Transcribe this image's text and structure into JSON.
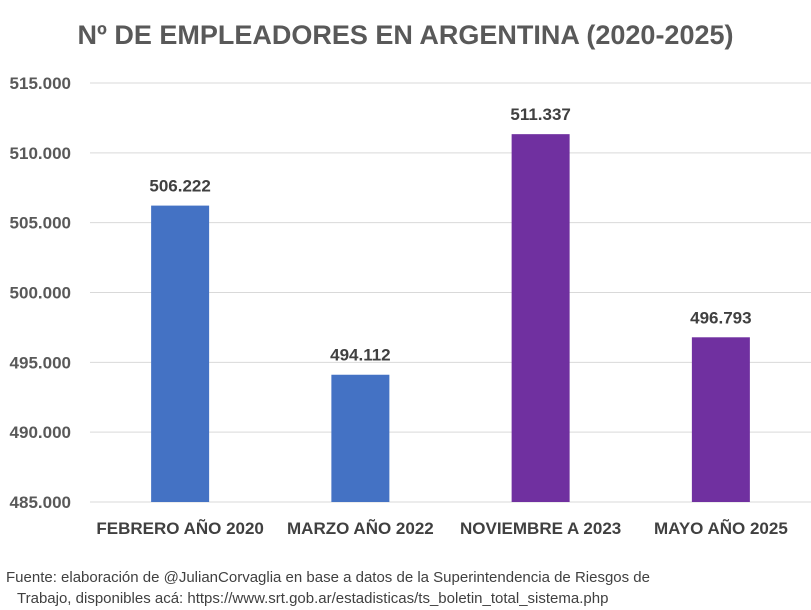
{
  "chart_data": {
    "type": "bar",
    "title": "Nº DE EMPLEADORES EN ARGENTINA (2020-2025)",
    "categories": [
      "FEBRERO AÑO 2020",
      "MARZO AÑO 2022",
      "NOVIEMBRE A 2023",
      "MAYO AÑO 2025"
    ],
    "values": [
      506222,
      494112,
      511337,
      496793
    ],
    "value_labels": [
      "506.222",
      "494.112",
      "511.337",
      "496.793"
    ],
    "bar_colors": [
      "#4472C4",
      "#4472C4",
      "#7030A0",
      "#7030A0"
    ],
    "ylim": [
      485000,
      515000
    ],
    "y_ticks": [
      485000,
      490000,
      495000,
      500000,
      505000,
      510000,
      515000
    ],
    "y_tick_labels": [
      "485.000",
      "490.000",
      "495.000",
      "500.000",
      "505.000",
      "510.000",
      "515.000"
    ],
    "xlabel": "",
    "ylabel": "",
    "grid": true,
    "legend": "none"
  },
  "source": {
    "line1": "Fuente: elaboración de @JulianCorvaglia en base a datos de la Superintendencia de Riesgos de",
    "line2": "Trabajo, disponibles acá: https://www.srt.gob.ar/estadisticas/ts_boletin_total_sistema.php"
  }
}
